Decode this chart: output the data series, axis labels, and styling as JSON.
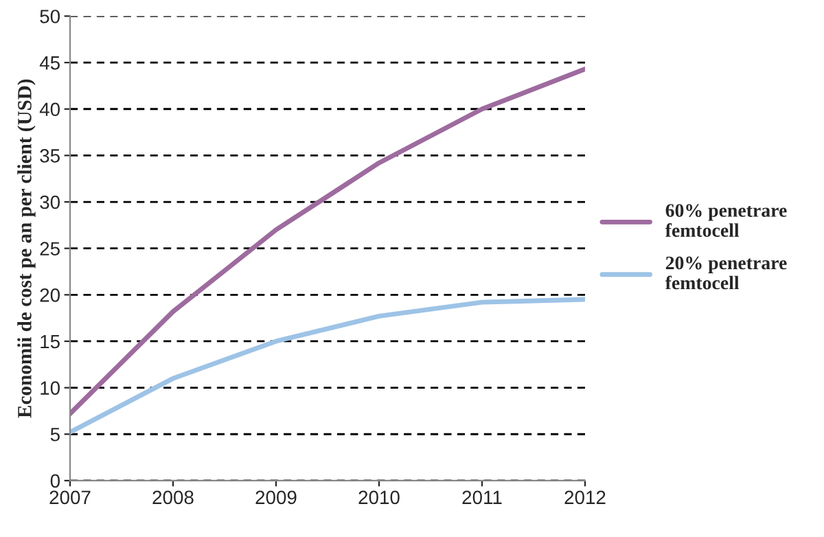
{
  "chart_data": {
    "type": "line",
    "ylabel": "Economii de cost pe an per client (USD)",
    "x": [
      2007,
      2008,
      2009,
      2010,
      2011,
      2012
    ],
    "series": [
      {
        "name": "60% penetrare femtocell",
        "color": "#9e6b9e",
        "values": [
          7.2,
          18.2,
          27,
          34.2,
          40,
          44.3
        ]
      },
      {
        "name": "20% penetrare femtocell",
        "color": "#9dc3e6",
        "values": [
          5.2,
          11,
          15,
          17.7,
          19.2,
          19.5
        ]
      }
    ],
    "xlim": [
      2007,
      2012
    ],
    "xticks": [
      2007,
      2008,
      2009,
      2010,
      2011,
      2012
    ],
    "ylim": [
      0,
      50
    ],
    "yticks": [
      0,
      5,
      10,
      15,
      20,
      25,
      30,
      35,
      40,
      45,
      50
    ],
    "grid": "y",
    "legend": "right",
    "marker": "none",
    "line_style": "solid"
  }
}
